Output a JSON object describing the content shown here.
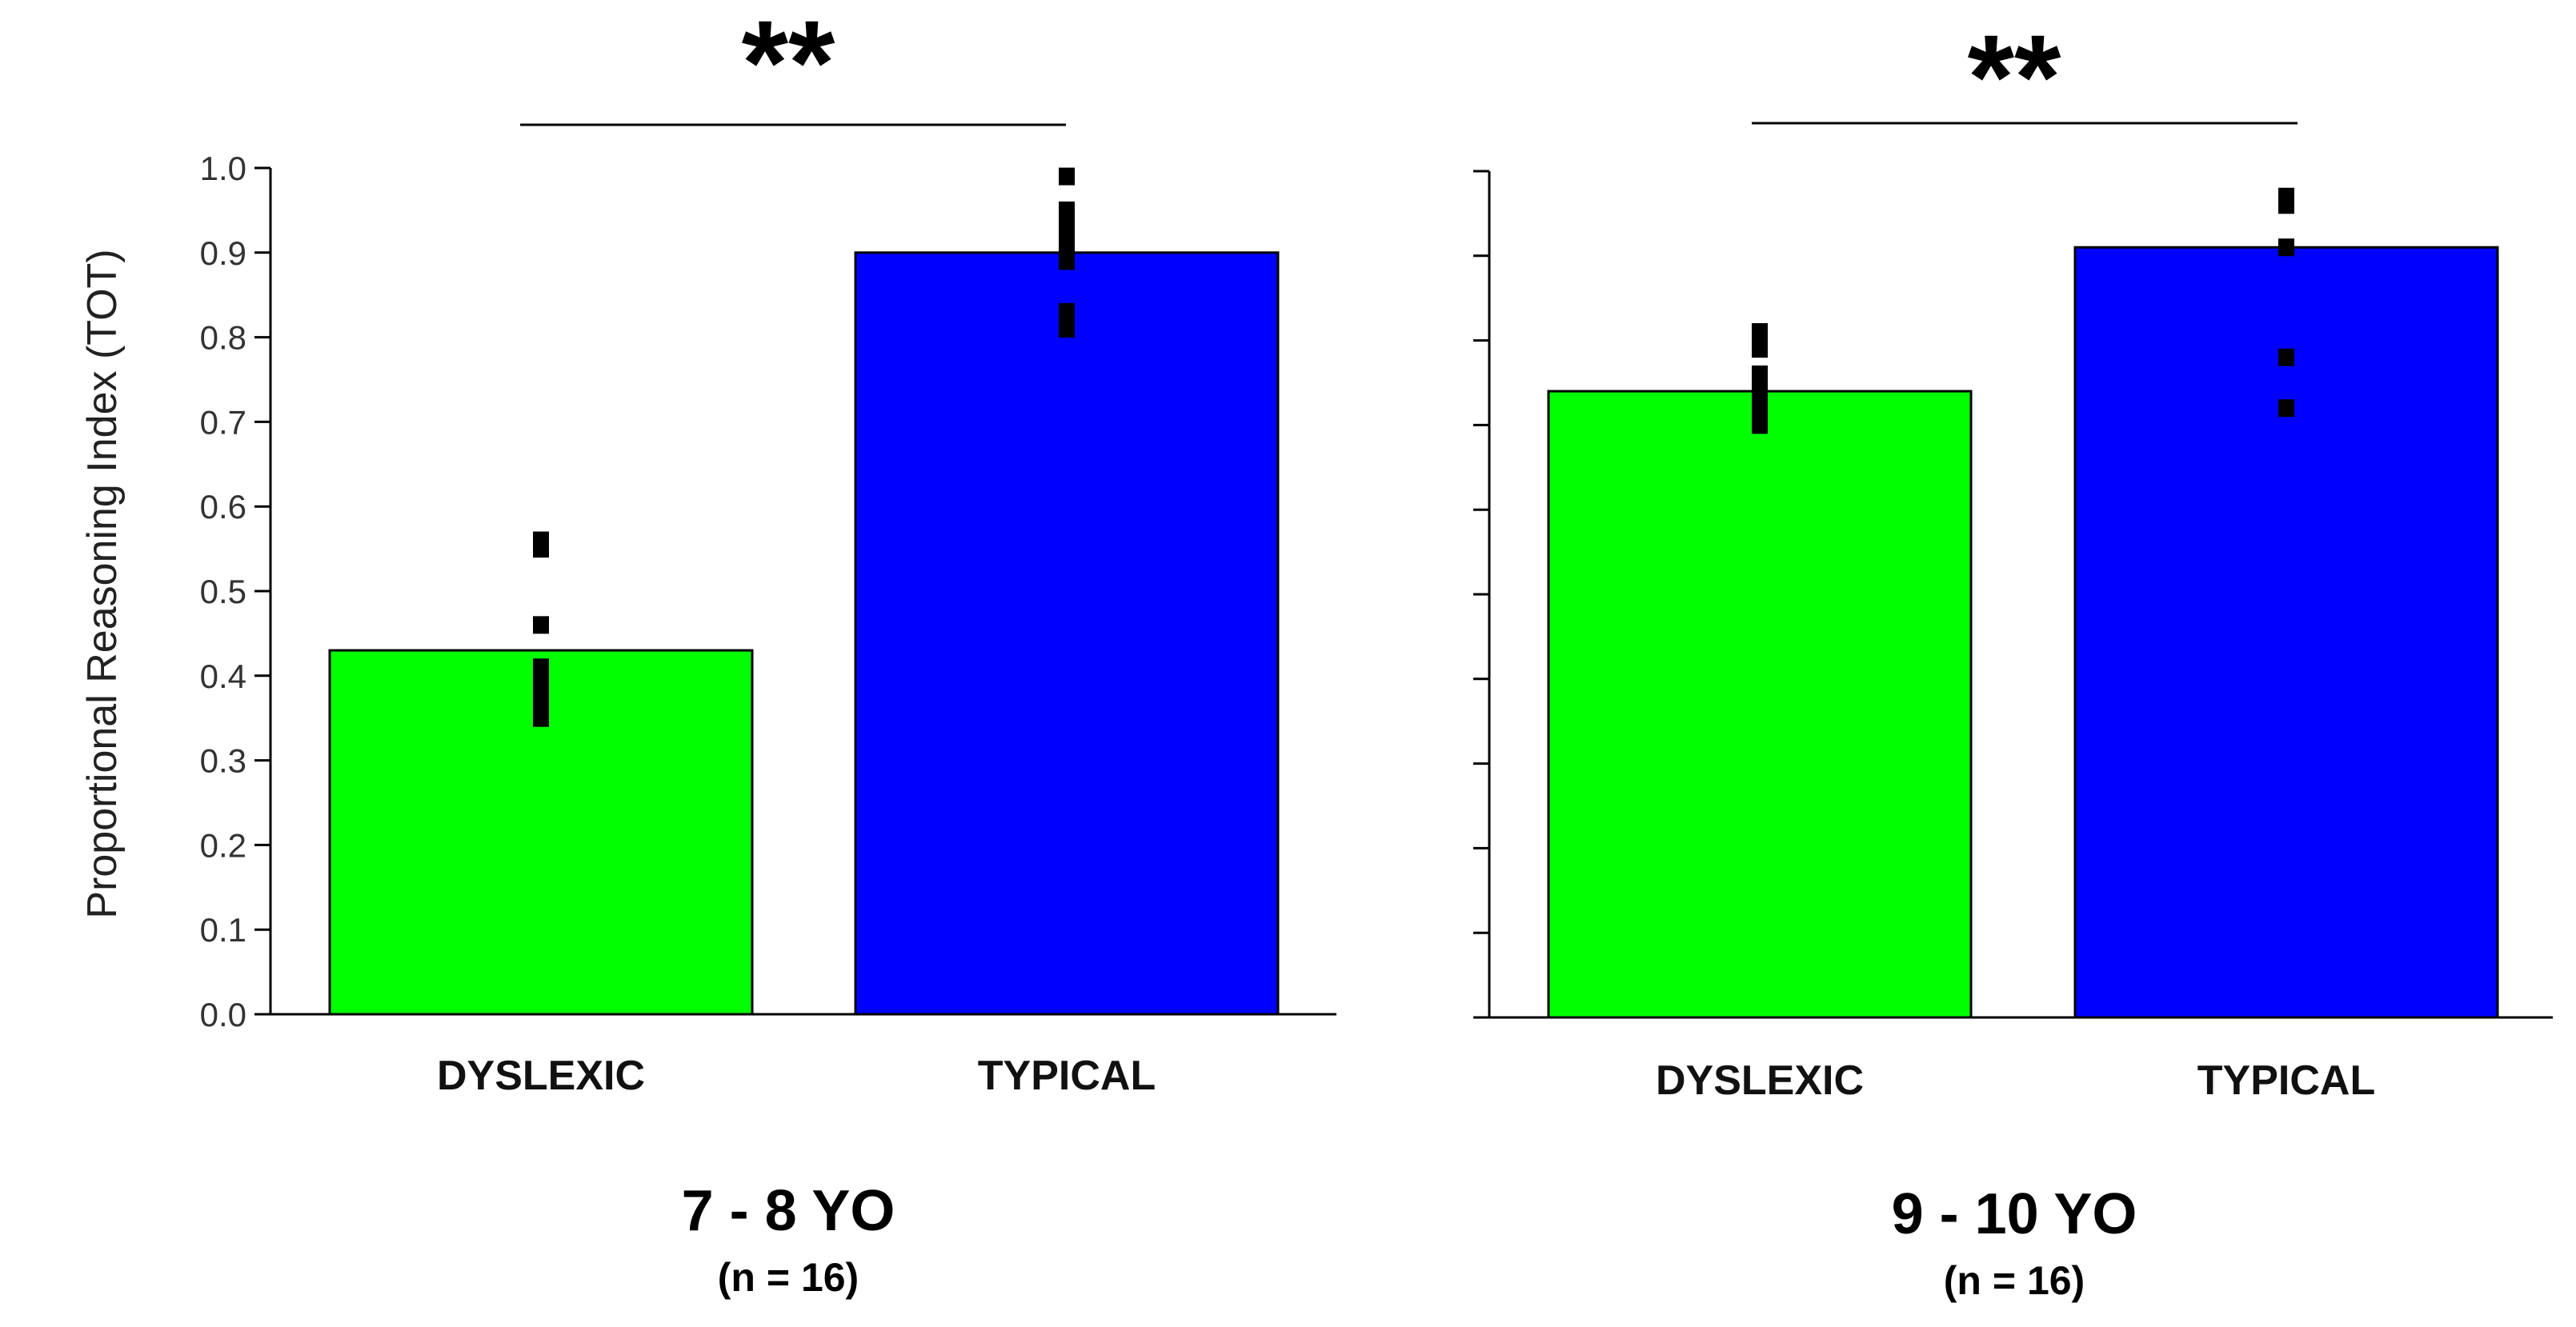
{
  "chart_data": [
    {
      "type": "bar",
      "title": "7 - 8 YO",
      "subtitle": "(n = 16)",
      "ylabel": "Proportional Reasoning Index (TOT)",
      "xlabel": "",
      "ylim": [
        0,
        1
      ],
      "yticks": [
        "0.0",
        "0.1",
        "0.2",
        "0.3",
        "0.4",
        "0.5",
        "0.6",
        "0.7",
        "0.8",
        "0.9",
        "1.0"
      ],
      "categories": [
        "DYSLEXIC",
        "TYPICAL"
      ],
      "values": [
        0.43,
        0.9
      ],
      "bar_colors": [
        "#00ff00",
        "#0000ff"
      ],
      "points": [
        [
          0.35,
          0.36,
          0.38,
          0.4,
          0.41,
          0.46,
          0.55,
          0.56
        ],
        [
          0.81,
          0.83,
          0.89,
          0.9,
          0.92,
          0.93,
          0.95,
          0.99
        ]
      ],
      "significance": "**"
    },
    {
      "type": "bar",
      "title": "9 - 10 YO",
      "subtitle": "(n = 16)",
      "ylabel": "",
      "xlabel": "",
      "ylim": [
        0,
        1
      ],
      "yticks": [],
      "categories": [
        "DYSLEXIC",
        "TYPICAL"
      ],
      "values": [
        0.74,
        0.91
      ],
      "bar_colors": [
        "#00ff00",
        "#0000ff"
      ],
      "points": [
        [
          0.7,
          0.72,
          0.74,
          0.75,
          0.76,
          0.79,
          0.81
        ],
        [
          0.72,
          0.78,
          0.91,
          0.96,
          0.97
        ]
      ],
      "significance": "**"
    }
  ]
}
